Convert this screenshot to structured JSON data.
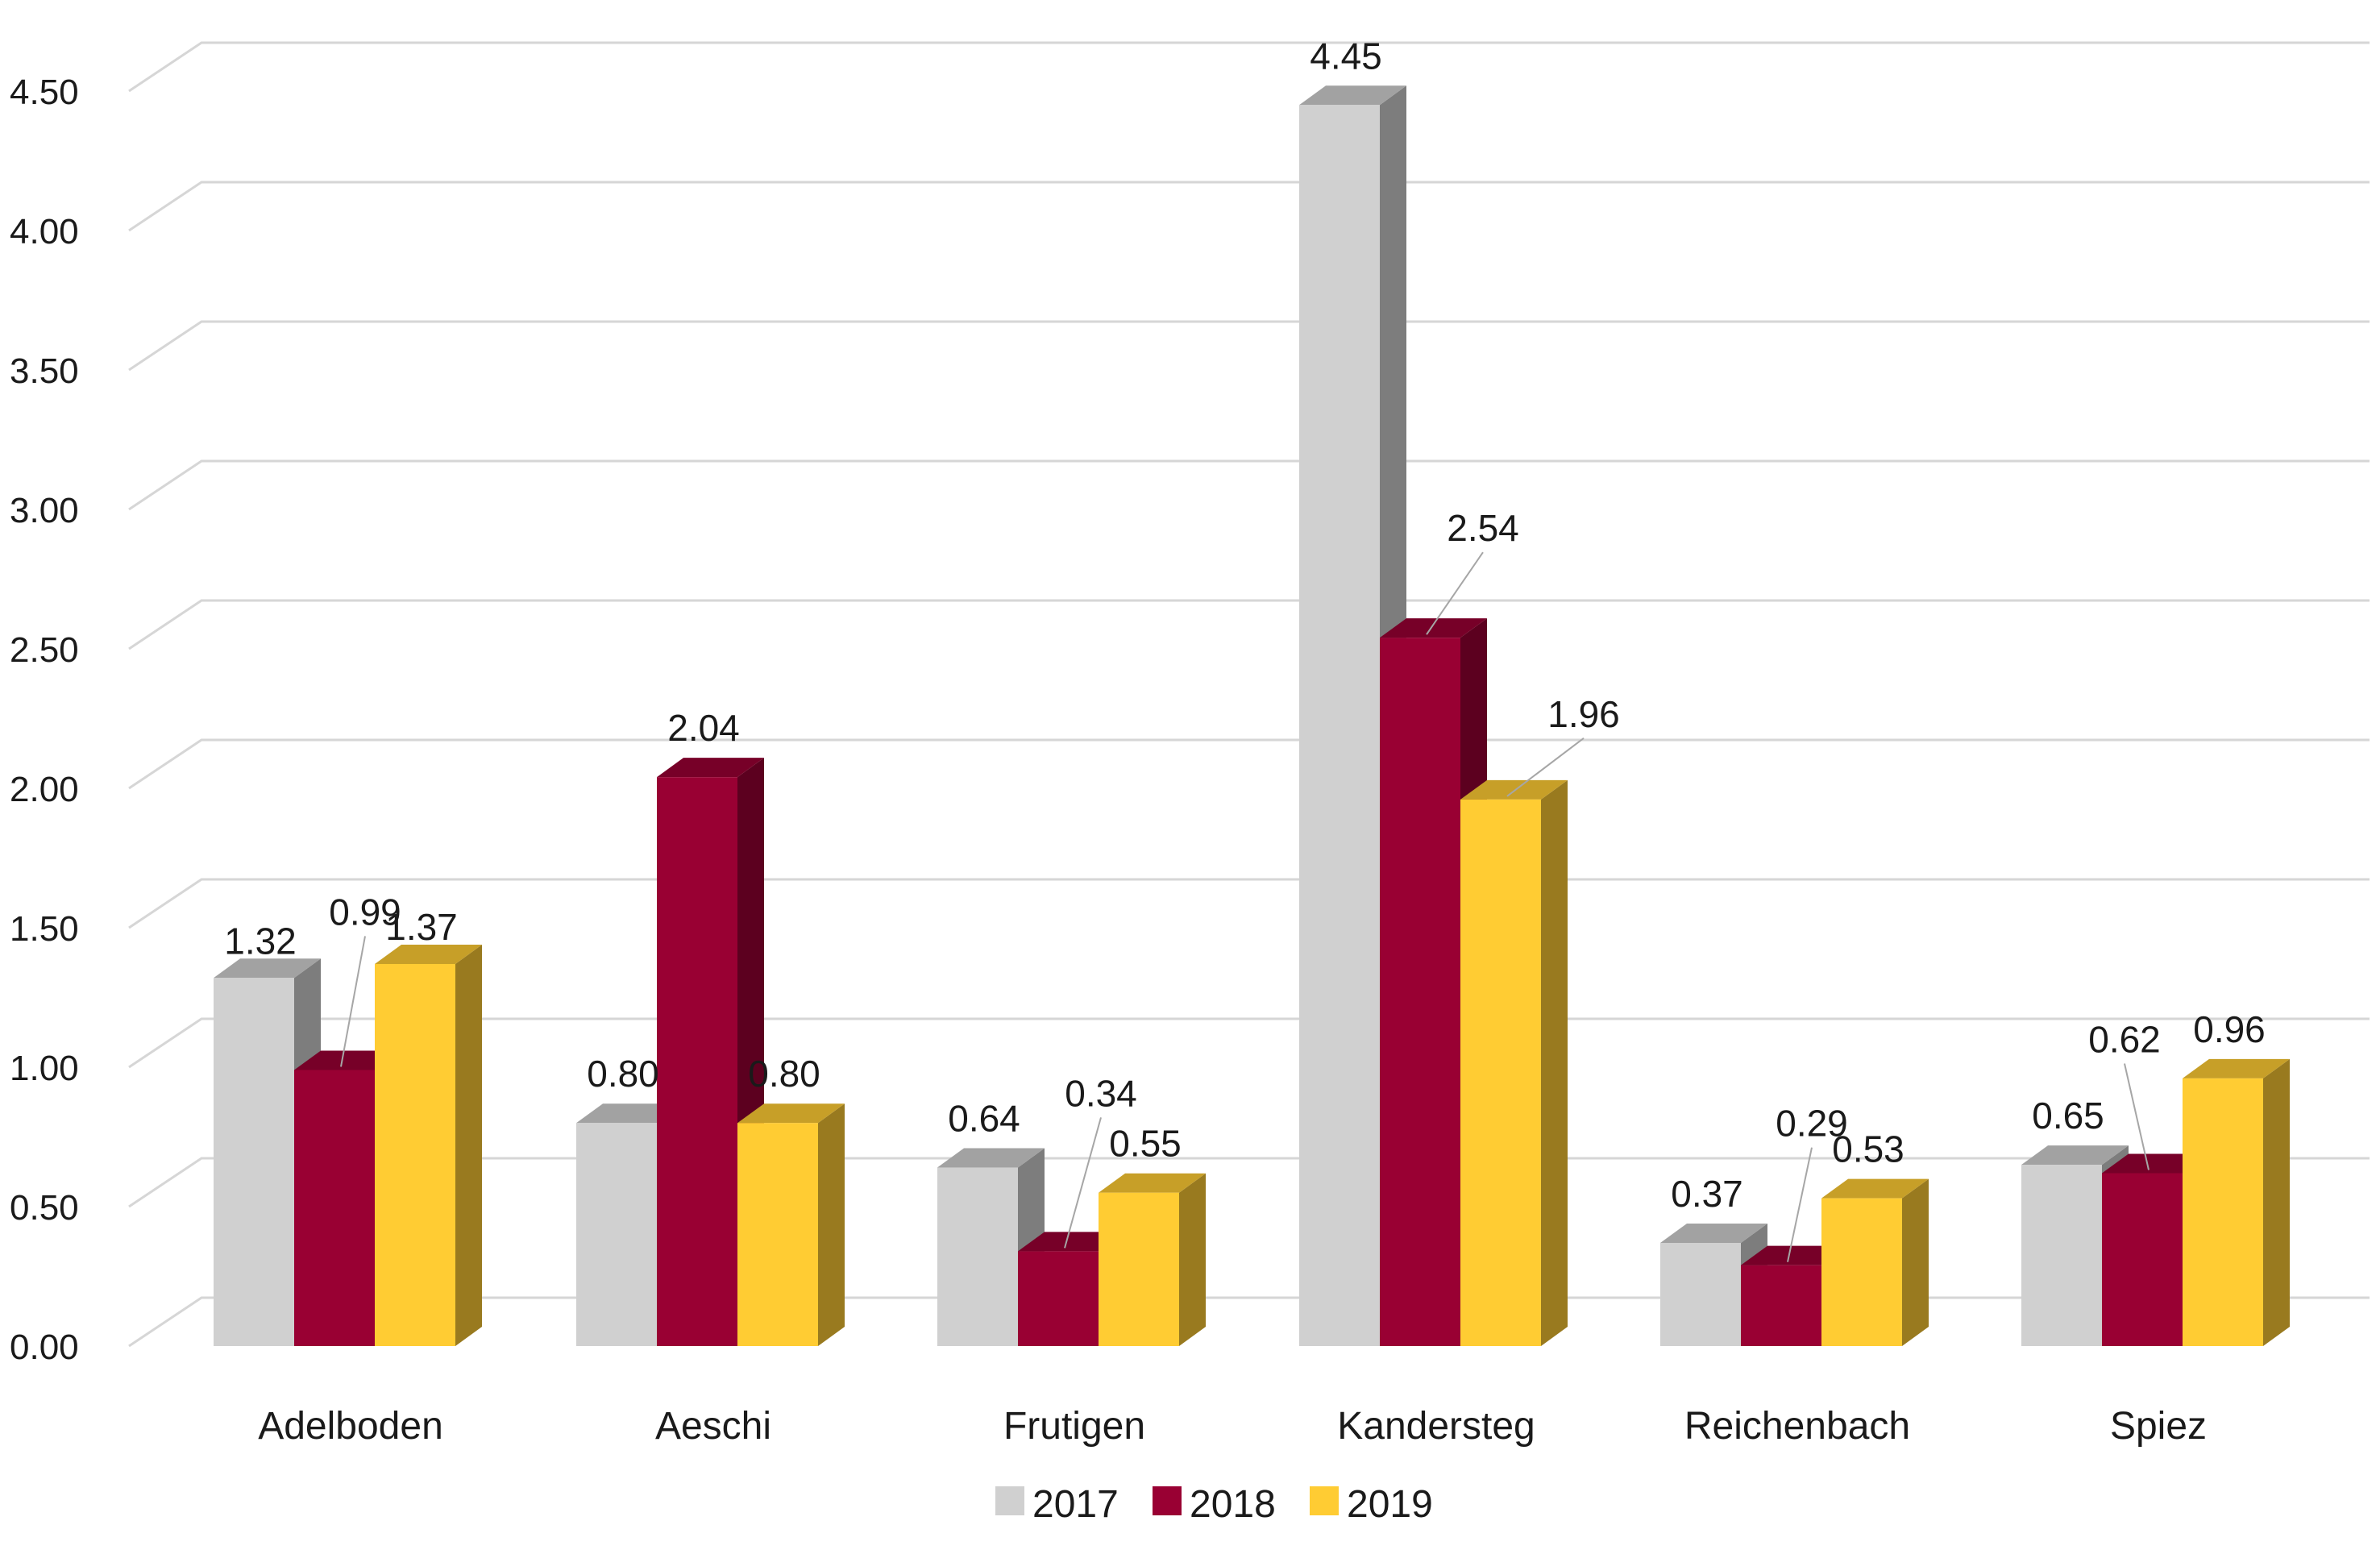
{
  "chart_data": {
    "type": "bar",
    "title": "",
    "xlabel": "",
    "ylabel": "",
    "ylim": [
      0,
      4.5
    ],
    "yticks": [
      "0.00",
      "0.50",
      "1.00",
      "1.50",
      "2.00",
      "2.50",
      "3.00",
      "3.50",
      "4.00",
      "4.50"
    ],
    "grid": true,
    "legend_position": "bottom",
    "three_d": true,
    "categories": [
      "Adelboden",
      "Aeschi",
      "Frutigen",
      "Kandersteg",
      "Reichenbach",
      "Spiez"
    ],
    "series": [
      {
        "name": "2017",
        "color": "#d0d0d0",
        "values": [
          1.32,
          0.8,
          0.64,
          4.45,
          0.37,
          0.65
        ],
        "labels": [
          "1.32",
          "0.80",
          "0.64",
          "4.45",
          "0.37",
          "0.65"
        ]
      },
      {
        "name": "2018",
        "color": "#990033",
        "values": [
          0.99,
          2.04,
          0.34,
          2.54,
          0.29,
          0.62
        ],
        "labels": [
          "0.99",
          "2.04",
          "0.34",
          "2.54",
          "0.29",
          "0.62"
        ]
      },
      {
        "name": "2019",
        "color": "#ffcc33",
        "values": [
          1.37,
          0.8,
          0.55,
          1.96,
          0.53,
          0.96
        ],
        "labels": [
          "1.37",
          "0.80",
          "0.55",
          "1.96",
          "0.53",
          "0.96"
        ]
      }
    ]
  }
}
